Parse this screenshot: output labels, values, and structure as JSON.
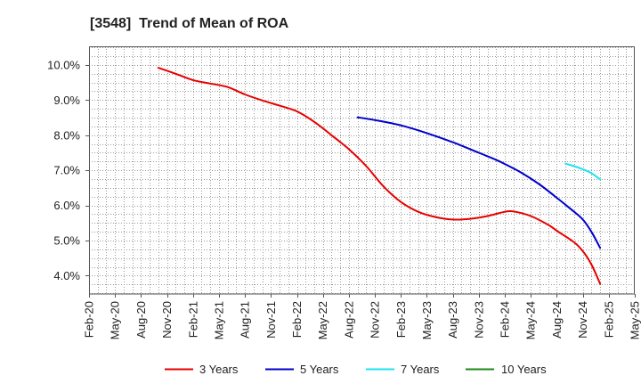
{
  "chart_data": {
    "type": "line",
    "title": "[3548]  Trend of Mean of ROA",
    "xlabel": "",
    "ylabel": "",
    "x_range": [
      "2020-02",
      "2025-05"
    ],
    "x_ticks": [
      "Feb-20",
      "May-20",
      "Aug-20",
      "Nov-20",
      "Feb-21",
      "May-21",
      "Aug-21",
      "Nov-21",
      "Feb-22",
      "May-22",
      "Aug-22",
      "Nov-22",
      "Feb-23",
      "May-23",
      "Aug-23",
      "Nov-23",
      "Feb-24",
      "May-24",
      "Aug-24",
      "Nov-24",
      "Feb-25",
      "May-25"
    ],
    "ylim": [
      3.48,
      10.53
    ],
    "y_ticks": [
      4.0,
      5.0,
      6.0,
      7.0,
      8.0,
      9.0,
      10.0
    ],
    "y_tick_labels": [
      "4.0%",
      "5.0%",
      "6.0%",
      "7.0%",
      "8.0%",
      "9.0%",
      "10.0%"
    ],
    "grid": true,
    "legend_position": "bottom",
    "series": [
      {
        "name": "3 Years",
        "color": "#e60000",
        "points": [
          {
            "date": "2020-10",
            "value": 9.92
          },
          {
            "date": "2020-12",
            "value": 9.75
          },
          {
            "date": "2021-02",
            "value": 9.57
          },
          {
            "date": "2021-04",
            "value": 9.47
          },
          {
            "date": "2021-06",
            "value": 9.37
          },
          {
            "date": "2021-08",
            "value": 9.16
          },
          {
            "date": "2021-10",
            "value": 8.99
          },
          {
            "date": "2021-12",
            "value": 8.84
          },
          {
            "date": "2022-02",
            "value": 8.68
          },
          {
            "date": "2022-04",
            "value": 8.38
          },
          {
            "date": "2022-06",
            "value": 8.0
          },
          {
            "date": "2022-08",
            "value": 7.6
          },
          {
            "date": "2022-10",
            "value": 7.12
          },
          {
            "date": "2022-12",
            "value": 6.54
          },
          {
            "date": "2023-02",
            "value": 6.1
          },
          {
            "date": "2023-04",
            "value": 5.82
          },
          {
            "date": "2023-06",
            "value": 5.67
          },
          {
            "date": "2023-08",
            "value": 5.6
          },
          {
            "date": "2023-10",
            "value": 5.62
          },
          {
            "date": "2023-12",
            "value": 5.7
          },
          {
            "date": "2024-02",
            "value": 5.82
          },
          {
            "date": "2024-03",
            "value": 5.83
          },
          {
            "date": "2024-05",
            "value": 5.7
          },
          {
            "date": "2024-07",
            "value": 5.45
          },
          {
            "date": "2024-08",
            "value": 5.28
          },
          {
            "date": "2024-10",
            "value": 4.95
          },
          {
            "date": "2024-11",
            "value": 4.7
          },
          {
            "date": "2024-12",
            "value": 4.32
          },
          {
            "date": "2025-01",
            "value": 3.77
          }
        ]
      },
      {
        "name": "5 Years",
        "color": "#0000cc",
        "points": [
          {
            "date": "2022-09",
            "value": 8.51
          },
          {
            "date": "2022-11",
            "value": 8.43
          },
          {
            "date": "2023-02",
            "value": 8.28
          },
          {
            "date": "2023-05",
            "value": 8.06
          },
          {
            "date": "2023-08",
            "value": 7.8
          },
          {
            "date": "2023-11",
            "value": 7.5
          },
          {
            "date": "2024-01",
            "value": 7.3
          },
          {
            "date": "2024-02",
            "value": 7.18
          },
          {
            "date": "2024-04",
            "value": 6.92
          },
          {
            "date": "2024-06",
            "value": 6.6
          },
          {
            "date": "2024-08",
            "value": 6.22
          },
          {
            "date": "2024-10",
            "value": 5.82
          },
          {
            "date": "2024-11",
            "value": 5.6
          },
          {
            "date": "2024-12",
            "value": 5.25
          },
          {
            "date": "2025-01",
            "value": 4.79
          }
        ]
      },
      {
        "name": "7 Years",
        "color": "#1ee3f0",
        "points": [
          {
            "date": "2024-09",
            "value": 7.19
          },
          {
            "date": "2024-10",
            "value": 7.12
          },
          {
            "date": "2024-11",
            "value": 7.03
          },
          {
            "date": "2024-12",
            "value": 6.92
          },
          {
            "date": "2025-01",
            "value": 6.74
          }
        ]
      },
      {
        "name": "10 Years",
        "color": "#1a8a1a",
        "points": []
      }
    ]
  }
}
